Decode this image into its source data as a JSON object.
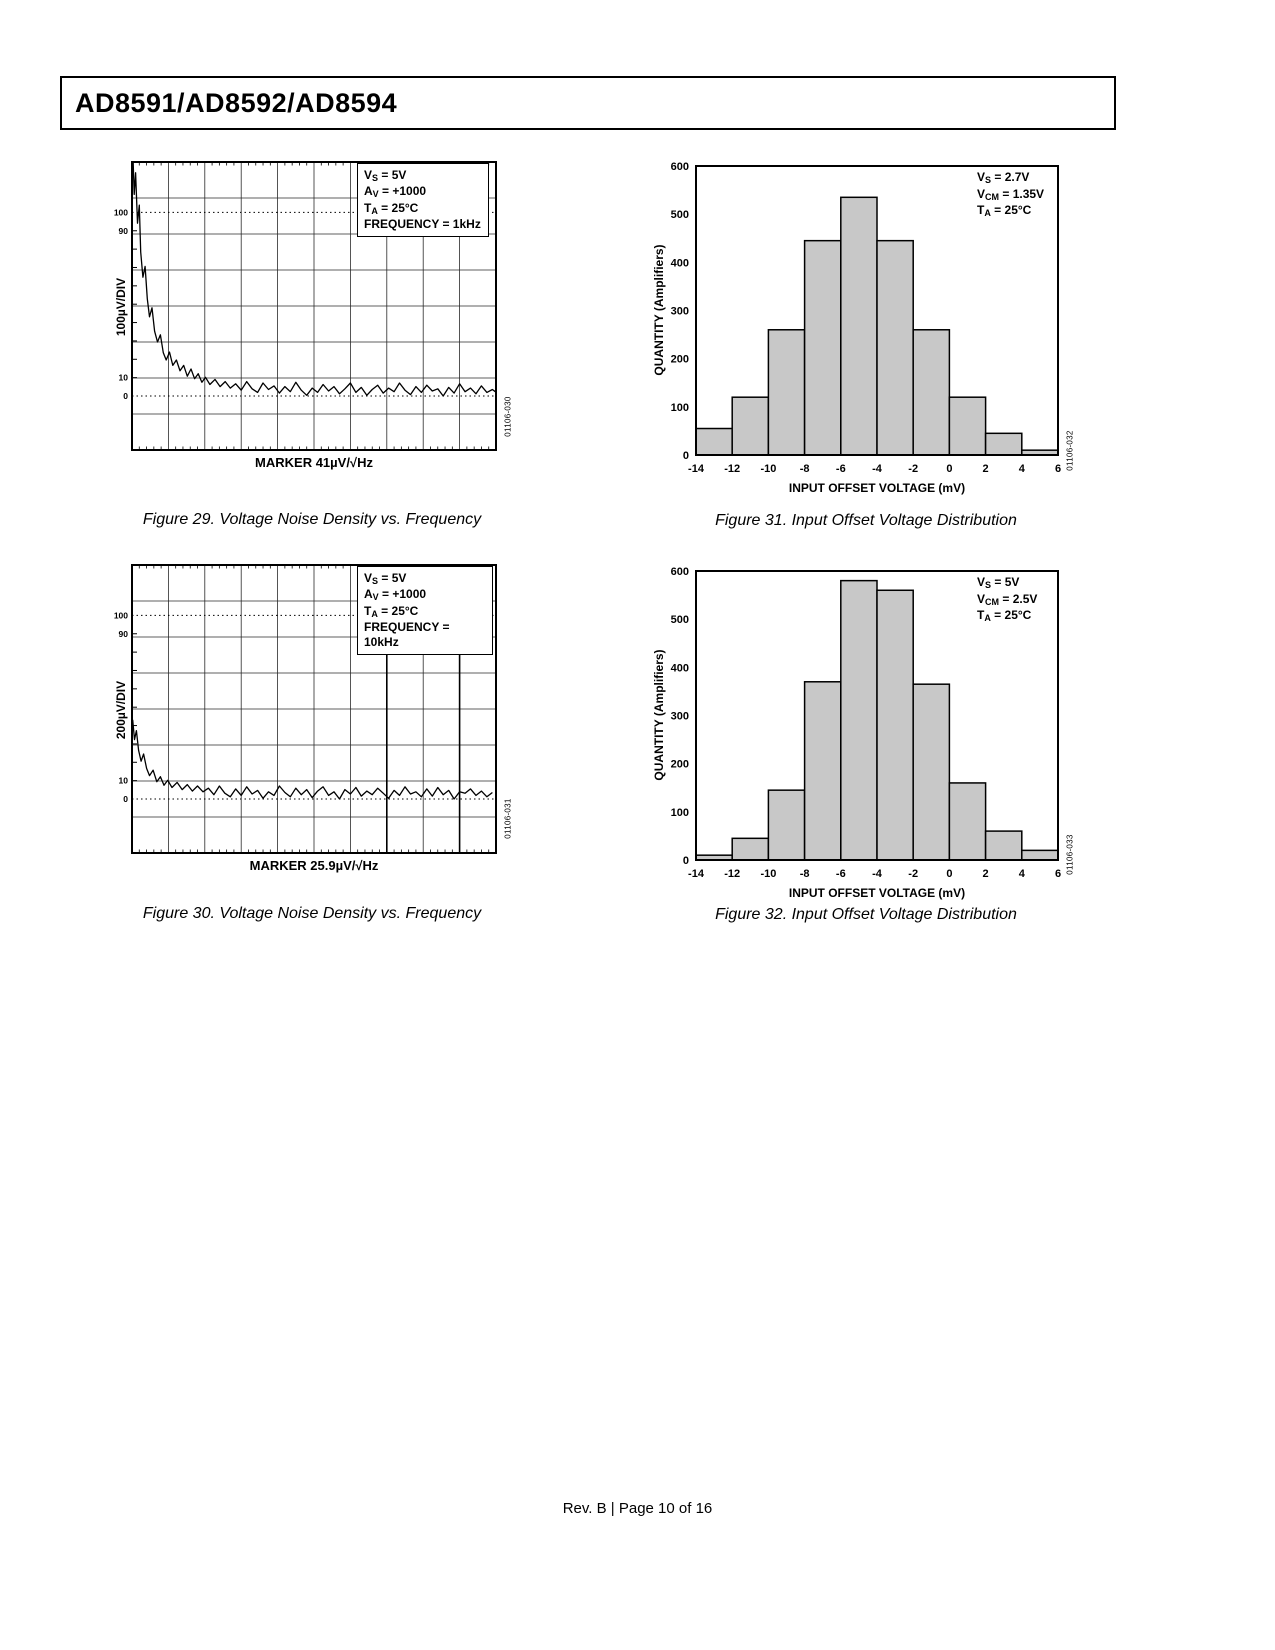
{
  "page": {
    "header_title": "AD8591/AD8592/AD8594",
    "footer": "Rev. B | Page 10 of 16"
  },
  "figures": {
    "fig29": {
      "caption": "Figure 29. Voltage Noise Density vs. Frequency",
      "marker": "MARKER 41µV/√Hz",
      "y_axis_label": "100µV/DIV",
      "side_code": "01106-030",
      "percent_labels": [
        "100",
        "90",
        "10",
        "0"
      ],
      "annotation": [
        {
          "pre": "V",
          "sub": "S",
          "post": " = 5V"
        },
        {
          "pre": "A",
          "sub": "V",
          "post": " = +1000"
        },
        {
          "pre": "T",
          "sub": "A",
          "post": " = 25°C"
        },
        {
          "pre": "FREQUENCY = 1kHz"
        }
      ]
    },
    "fig30": {
      "caption": "Figure 30. Voltage Noise Density vs. Frequency",
      "marker": "MARKER 25.9µV/√Hz",
      "y_axis_label": "200µV/DIV",
      "side_code": "01106-031",
      "percent_labels": [
        "100",
        "90",
        "10",
        "0"
      ],
      "annotation": [
        {
          "pre": "V",
          "sub": "S",
          "post": " = 5V"
        },
        {
          "pre": "A",
          "sub": "V",
          "post": " = +1000"
        },
        {
          "pre": "T",
          "sub": "A",
          "post": " = 25°C"
        },
        {
          "pre": "FREQUENCY = 10kHz"
        }
      ]
    },
    "fig31": {
      "caption": "Figure 31. Input Offset Voltage Distribution",
      "xlabel": "INPUT OFFSET VOLTAGE (mV)",
      "ylabel": "QUANTITY (Amplifiers)",
      "side_code": "01106-032",
      "annotation": [
        {
          "pre": "V",
          "sub": "S",
          "post": " = 2.7V"
        },
        {
          "pre": "V",
          "sub": "CM",
          "post": " = 1.35V"
        },
        {
          "pre": "T",
          "sub": "A",
          "post": " = 25°C"
        }
      ]
    },
    "fig32": {
      "caption": "Figure 32. Input Offset Voltage Distribution",
      "xlabel": "INPUT OFFSET VOLTAGE (mV)",
      "ylabel": "QUANTITY (Amplifiers)",
      "side_code": "01106-033",
      "annotation": [
        {
          "pre": "V",
          "sub": "S",
          "post": " = 5V"
        },
        {
          "pre": "V",
          "sub": "CM",
          "post": " = 2.5V"
        },
        {
          "pre": "T",
          "sub": "A",
          "post": " = 25°C"
        }
      ]
    }
  },
  "chart_data": [
    {
      "id": "fig29",
      "type": "line",
      "title": "Voltage Noise Density vs. Frequency",
      "y_per_div": "100µV/DIV",
      "marker_value": "41µV/√Hz",
      "grid": {
        "cols": 10,
        "rows": 8
      },
      "ref_lines": {
        "top_div_from_top": 1.4,
        "zero_div_from_bottom": 1.5
      },
      "trace_divs": [
        [
          0.02,
          8.4
        ],
        [
          0.06,
          7.1
        ],
        [
          0.1,
          7.7
        ],
        [
          0.15,
          6.3
        ],
        [
          0.2,
          6.8
        ],
        [
          0.24,
          5.5
        ],
        [
          0.3,
          4.8
        ],
        [
          0.36,
          5.1
        ],
        [
          0.42,
          4.2
        ],
        [
          0.48,
          3.7
        ],
        [
          0.55,
          3.95
        ],
        [
          0.62,
          3.3
        ],
        [
          0.7,
          3.0
        ],
        [
          0.78,
          3.2
        ],
        [
          0.86,
          2.7
        ],
        [
          0.94,
          2.5
        ],
        [
          1.03,
          2.72
        ],
        [
          1.12,
          2.35
        ],
        [
          1.22,
          2.5
        ],
        [
          1.32,
          2.2
        ],
        [
          1.42,
          2.35
        ],
        [
          1.52,
          2.05
        ],
        [
          1.62,
          2.25
        ],
        [
          1.72,
          1.98
        ],
        [
          1.82,
          2.12
        ],
        [
          1.92,
          1.88
        ],
        [
          2.02,
          2.02
        ],
        [
          2.14,
          1.82
        ],
        [
          2.28,
          1.96
        ],
        [
          2.42,
          1.76
        ],
        [
          2.56,
          1.9
        ],
        [
          2.7,
          1.72
        ],
        [
          2.85,
          1.84
        ],
        [
          3.0,
          1.66
        ],
        [
          3.15,
          1.9
        ],
        [
          3.3,
          1.7
        ],
        [
          3.45,
          1.6
        ],
        [
          3.6,
          1.86
        ],
        [
          3.75,
          1.68
        ],
        [
          3.9,
          1.78
        ],
        [
          4.05,
          1.58
        ],
        [
          4.2,
          1.76
        ],
        [
          4.35,
          1.62
        ],
        [
          4.5,
          1.88
        ],
        [
          4.65,
          1.66
        ],
        [
          4.8,
          1.52
        ],
        [
          4.95,
          1.72
        ],
        [
          5.1,
          1.6
        ],
        [
          5.25,
          1.82
        ],
        [
          5.4,
          1.64
        ],
        [
          5.55,
          1.76
        ],
        [
          5.7,
          1.56
        ],
        [
          5.85,
          1.7
        ],
        [
          6.0,
          1.86
        ],
        [
          6.15,
          1.6
        ],
        [
          6.3,
          1.74
        ],
        [
          6.45,
          1.52
        ],
        [
          6.6,
          1.68
        ],
        [
          6.75,
          1.8
        ],
        [
          6.9,
          1.58
        ],
        [
          7.05,
          1.72
        ],
        [
          7.2,
          1.62
        ],
        [
          7.35,
          1.86
        ],
        [
          7.5,
          1.66
        ],
        [
          7.65,
          1.54
        ],
        [
          7.8,
          1.76
        ],
        [
          7.95,
          1.6
        ],
        [
          8.1,
          1.8
        ],
        [
          8.25,
          1.64
        ],
        [
          8.4,
          1.7
        ],
        [
          8.55,
          1.5
        ],
        [
          8.7,
          1.74
        ],
        [
          8.85,
          1.58
        ],
        [
          9.0,
          1.84
        ],
        [
          9.15,
          1.62
        ],
        [
          9.3,
          1.72
        ],
        [
          9.45,
          1.56
        ],
        [
          9.6,
          1.78
        ],
        [
          9.75,
          1.6
        ],
        [
          9.9,
          1.68
        ],
        [
          9.98,
          1.62
        ]
      ]
    },
    {
      "id": "fig30",
      "type": "line",
      "title": "Voltage Noise Density vs. Frequency",
      "y_per_div": "200µV/DIV",
      "marker_value": "25.9µV/√Hz",
      "grid": {
        "cols": 10,
        "rows": 8
      },
      "ref_lines": {
        "top_div_from_top": 1.4,
        "zero_div_from_bottom": 1.5
      },
      "cursor_x_divs": [
        7,
        9
      ],
      "trace_divs": [
        [
          0.02,
          3.7
        ],
        [
          0.07,
          3.15
        ],
        [
          0.12,
          3.4
        ],
        [
          0.18,
          2.85
        ],
        [
          0.25,
          2.55
        ],
        [
          0.32,
          2.75
        ],
        [
          0.4,
          2.35
        ],
        [
          0.48,
          2.15
        ],
        [
          0.58,
          2.3
        ],
        [
          0.68,
          1.98
        ],
        [
          0.78,
          2.12
        ],
        [
          0.88,
          1.88
        ],
        [
          0.98,
          2.02
        ],
        [
          1.1,
          1.82
        ],
        [
          1.24,
          1.96
        ],
        [
          1.38,
          1.76
        ],
        [
          1.52,
          1.9
        ],
        [
          1.66,
          1.72
        ],
        [
          1.8,
          1.86
        ],
        [
          1.95,
          1.7
        ],
        [
          2.1,
          1.8
        ],
        [
          2.25,
          1.62
        ],
        [
          2.4,
          1.86
        ],
        [
          2.55,
          1.66
        ],
        [
          2.7,
          1.56
        ],
        [
          2.85,
          1.78
        ],
        [
          3.0,
          1.6
        ],
        [
          3.15,
          1.84
        ],
        [
          3.3,
          1.64
        ],
        [
          3.45,
          1.74
        ],
        [
          3.6,
          1.52
        ],
        [
          3.75,
          1.7
        ],
        [
          3.9,
          1.6
        ],
        [
          4.05,
          1.86
        ],
        [
          4.2,
          1.68
        ],
        [
          4.35,
          1.56
        ],
        [
          4.5,
          1.8
        ],
        [
          4.65,
          1.62
        ],
        [
          4.8,
          1.76
        ],
        [
          4.95,
          1.54
        ],
        [
          5.1,
          1.72
        ],
        [
          5.25,
          1.84
        ],
        [
          5.4,
          1.6
        ],
        [
          5.55,
          1.7
        ],
        [
          5.7,
          1.5
        ],
        [
          5.85,
          1.76
        ],
        [
          6.0,
          1.64
        ],
        [
          6.15,
          1.82
        ],
        [
          6.3,
          1.58
        ],
        [
          6.45,
          1.72
        ],
        [
          6.6,
          1.62
        ],
        [
          6.75,
          1.8
        ],
        [
          6.9,
          1.66
        ],
        [
          7.05,
          1.52
        ],
        [
          7.2,
          1.74
        ],
        [
          7.35,
          1.6
        ],
        [
          7.5,
          1.84
        ],
        [
          7.65,
          1.64
        ],
        [
          7.8,
          1.7
        ],
        [
          7.95,
          1.56
        ],
        [
          8.1,
          1.78
        ],
        [
          8.25,
          1.58
        ],
        [
          8.4,
          1.82
        ],
        [
          8.55,
          1.62
        ],
        [
          8.7,
          1.74
        ],
        [
          8.85,
          1.5
        ],
        [
          9.0,
          1.7
        ],
        [
          9.15,
          1.66
        ],
        [
          9.3,
          1.78
        ],
        [
          9.45,
          1.6
        ],
        [
          9.6,
          1.72
        ],
        [
          9.75,
          1.56
        ],
        [
          9.9,
          1.68
        ]
      ]
    },
    {
      "id": "fig31",
      "type": "bar",
      "title": "Input Offset Voltage Distribution",
      "xlabel": "INPUT OFFSET VOLTAGE (mV)",
      "ylabel": "QUANTITY (Amplifiers)",
      "bin_edges": [
        -14,
        -12,
        -10,
        -8,
        -6,
        -4,
        -2,
        0,
        2,
        4,
        6
      ],
      "values": [
        55,
        120,
        260,
        445,
        535,
        445,
        260,
        120,
        45,
        10
      ],
      "x_tick_labels": [
        "-14",
        "-12",
        "-10",
        "-8",
        "-6",
        "-4",
        "-2",
        "0",
        "2",
        "4",
        "6"
      ],
      "y_ticks": [
        0,
        100,
        200,
        300,
        400,
        500,
        600
      ],
      "ylim": [
        0,
        600
      ]
    },
    {
      "id": "fig32",
      "type": "bar",
      "title": "Input Offset Voltage Distribution",
      "xlabel": "INPUT OFFSET VOLTAGE (mV)",
      "ylabel": "QUANTITY (Amplifiers)",
      "bin_edges": [
        -14,
        -12,
        -10,
        -8,
        -6,
        -4,
        -2,
        0,
        2,
        4,
        6
      ],
      "values": [
        10,
        45,
        145,
        370,
        580,
        560,
        365,
        160,
        60,
        20
      ],
      "x_tick_labels": [
        "-14",
        "-12",
        "-10",
        "-8",
        "-6",
        "-4",
        "-2",
        "0",
        "2",
        "4",
        "6"
      ],
      "y_ticks": [
        0,
        100,
        200,
        300,
        400,
        500,
        600
      ],
      "ylim": [
        0,
        600
      ]
    }
  ],
  "style": {
    "bar_fill": "#c8c8c8",
    "line_color": "#000000",
    "grid_color": "#2a2a2a"
  }
}
